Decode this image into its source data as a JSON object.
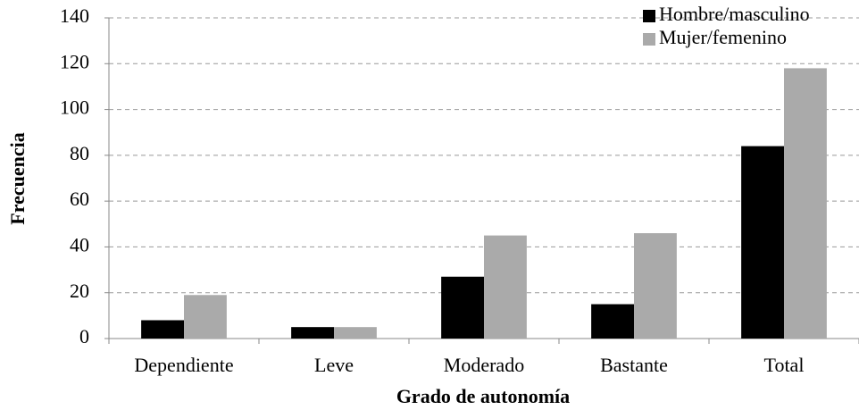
{
  "chart_data": {
    "type": "bar",
    "xlabel": "Grado de autonomía",
    "ylabel": "Frecuencia",
    "categories": [
      "Dependiente",
      "Leve",
      "Moderado",
      "Bastante",
      "Total"
    ],
    "series": [
      {
        "name": "Hombre/masculino",
        "color": "#000000",
        "values": [
          8,
          5,
          27,
          15,
          84
        ]
      },
      {
        "name": "Mujer/femenino",
        "color": "#aaaaaa",
        "values": [
          19,
          5,
          45,
          46,
          118
        ]
      }
    ],
    "ylim": [
      0,
      140
    ],
    "yticks": [
      0,
      20,
      40,
      60,
      80,
      100,
      120,
      140
    ],
    "grid": true,
    "legend": "top-right"
  }
}
